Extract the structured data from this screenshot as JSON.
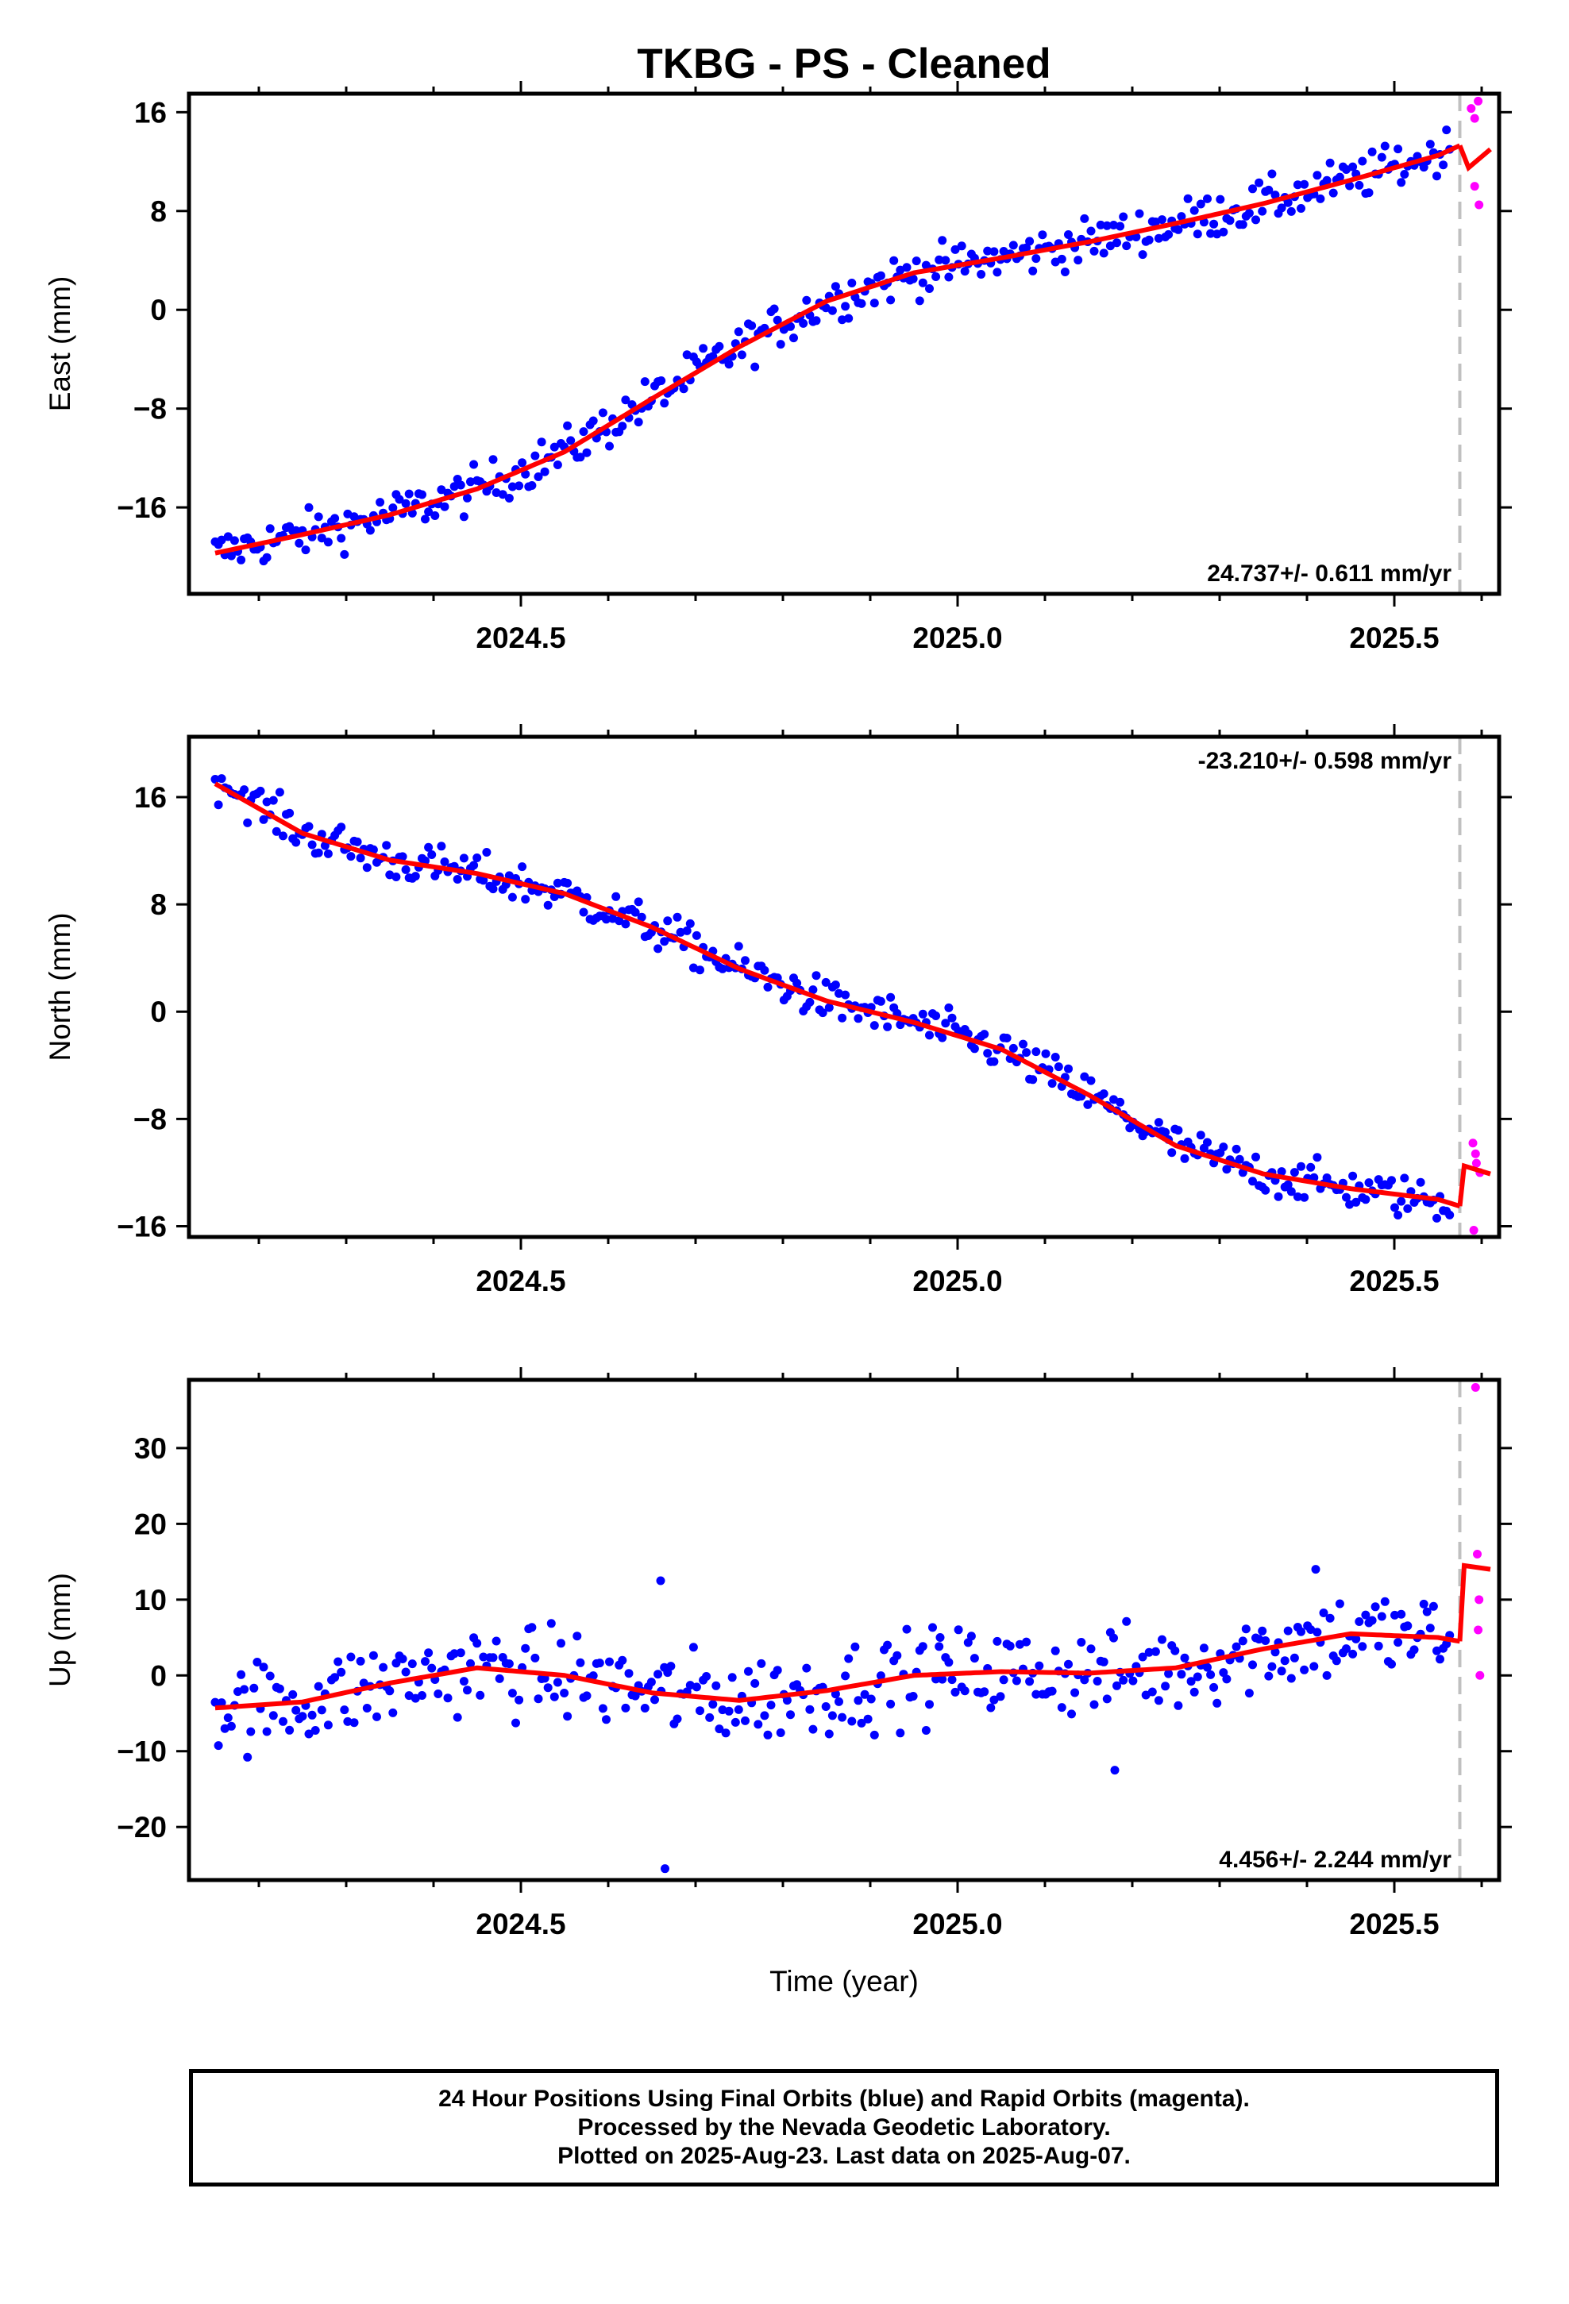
{
  "title": "TKBG  - PS - Cleaned",
  "footer": {
    "line1": "24 Hour Positions Using Final Orbits (blue) and Rapid Orbits (magenta).",
    "line2": "Processed by the Nevada Geodetic Laboratory.",
    "line3": "Plotted on 2025-Aug-23. Last data on 2025-Aug-07."
  },
  "chart_data": [
    {
      "type": "scatter",
      "panel": "east",
      "ylabel": "East (mm)",
      "xlabel": "",
      "xlim": [
        2024.12,
        2025.62
      ],
      "ylim": [
        -23,
        17.5
      ],
      "yticks": [
        16,
        8,
        0,
        -8,
        -16
      ],
      "xticks": [
        2024.5,
        2025.0,
        2025.5
      ],
      "xtick_labels": [
        "2024.5",
        "2025.0",
        "2025.5"
      ],
      "rate_label": "24.737+/- 0.611 mm/yr",
      "rate_position": "bottom-right",
      "break_epoch": 2025.575,
      "colors": {
        "final": "#0000ff",
        "rapid": "#ff00ff",
        "model": "#ff0000",
        "break_line": "#c0c0c0"
      },
      "model": {
        "x": [
          2024.15,
          2024.25,
          2024.35,
          2024.45,
          2024.55,
          2024.65,
          2024.75,
          2024.85,
          2024.95,
          2025.05,
          2025.15,
          2025.25,
          2025.35,
          2025.45,
          2025.55,
          2025.575
        ],
        "y": [
          -19.7,
          -18.2,
          -16.6,
          -14.5,
          -11.5,
          -7.2,
          -3.0,
          0.7,
          3.0,
          4.2,
          5.5,
          7.0,
          8.6,
          10.5,
          12.5,
          13.3
        ]
      },
      "model_after_break": {
        "x": [
          2025.575,
          2025.585,
          2025.61
        ],
        "y": [
          13.3,
          11.5,
          13.0
        ]
      },
      "final_anchors": {
        "x": [
          2024.15,
          2024.25,
          2024.35,
          2024.45,
          2024.55,
          2024.65,
          2024.75,
          2024.85,
          2024.95,
          2025.05,
          2025.15,
          2025.25,
          2025.35,
          2025.45,
          2025.565
        ],
        "y": [
          -19.7,
          -18.2,
          -16.6,
          -14.5,
          -11.5,
          -7.2,
          -3.0,
          0.7,
          3.0,
          4.2,
          5.5,
          7.0,
          8.6,
          10.5,
          13.0
        ]
      },
      "final_noise_mm": 1.3,
      "rapid_points": {
        "x": [
          2025.588,
          2025.592,
          2025.596,
          2025.592,
          2025.597
        ],
        "y": [
          16.3,
          15.5,
          16.9,
          10.0,
          8.5
        ]
      }
    },
    {
      "type": "scatter",
      "panel": "north",
      "ylabel": "North (mm)",
      "xlabel": "",
      "xlim": [
        2024.12,
        2025.62
      ],
      "ylim": [
        -16.8,
        20.5
      ],
      "yticks": [
        16,
        8,
        0,
        -8,
        -16
      ],
      "xticks": [
        2024.5,
        2025.0,
        2025.5
      ],
      "xtick_labels": [
        "2024.5",
        "2025.0",
        "2025.5"
      ],
      "rate_label": "-23.210+/- 0.598 mm/yr",
      "rate_position": "top-right",
      "break_epoch": 2025.575,
      "colors": {
        "final": "#0000ff",
        "rapid": "#ff00ff",
        "model": "#ff0000",
        "break_line": "#c0c0c0"
      },
      "model": {
        "x": [
          2024.15,
          2024.25,
          2024.35,
          2024.45,
          2024.55,
          2024.65,
          2024.75,
          2024.85,
          2024.95,
          2025.05,
          2025.15,
          2025.25,
          2025.35,
          2025.45,
          2025.55,
          2025.575
        ],
        "y": [
          17.0,
          13.3,
          11.3,
          10.3,
          8.8,
          6.3,
          3.2,
          0.8,
          -0.8,
          -2.8,
          -6.2,
          -10.0,
          -12.1,
          -13.2,
          -14.0,
          -14.5
        ]
      },
      "model_after_break": {
        "x": [
          2025.575,
          2025.58,
          2025.61
        ],
        "y": [
          -14.5,
          -11.5,
          -12.1
        ]
      },
      "final_anchors": {
        "x": [
          2024.15,
          2024.25,
          2024.35,
          2024.45,
          2024.55,
          2024.65,
          2024.75,
          2024.85,
          2024.95,
          2025.05,
          2025.15,
          2025.25,
          2025.35,
          2025.45,
          2025.565
        ],
        "y": [
          17.5,
          13.3,
          11.3,
          10.3,
          8.8,
          6.3,
          3.2,
          0.8,
          -0.8,
          -2.8,
          -6.2,
          -10.0,
          -12.1,
          -13.2,
          -14.3
        ]
      },
      "final_noise_mm": 1.1,
      "rapid_points": {
        "x": [
          2025.59,
          2025.594,
          2025.598,
          2025.593,
          2025.591
        ],
        "y": [
          -9.8,
          -11.3,
          -12.0,
          -10.6,
          -16.3
        ]
      }
    },
    {
      "type": "scatter",
      "panel": "up",
      "ylabel": "Up (mm)",
      "xlabel": "Time (year)",
      "xlim": [
        2024.12,
        2025.62
      ],
      "ylim": [
        -27,
        39
      ],
      "yticks": [
        30,
        20,
        10,
        0,
        -10,
        -20
      ],
      "xticks": [
        2024.5,
        2025.0,
        2025.5
      ],
      "xtick_labels": [
        "2024.5",
        "2025.0",
        "2025.5"
      ],
      "rate_label": "4.456+/- 2.244 mm/yr",
      "rate_position": "bottom-right",
      "break_epoch": 2025.575,
      "colors": {
        "final": "#0000ff",
        "rapid": "#ff00ff",
        "model": "#ff0000",
        "break_line": "#c0c0c0"
      },
      "model": {
        "x": [
          2024.15,
          2024.25,
          2024.35,
          2024.45,
          2024.55,
          2024.65,
          2024.75,
          2024.85,
          2024.95,
          2025.05,
          2025.15,
          2025.25,
          2025.35,
          2025.45,
          2025.55,
          2025.575
        ],
        "y": [
          -4.3,
          -3.5,
          -1.0,
          1.0,
          0.0,
          -2.3,
          -3.3,
          -2.0,
          0.0,
          0.5,
          0.3,
          1.0,
          3.5,
          5.5,
          5.0,
          4.5
        ]
      },
      "model_after_break": {
        "x": [
          2025.575,
          2025.58,
          2025.61
        ],
        "y": [
          4.5,
          14.5,
          14.0
        ]
      },
      "final_anchors": {
        "x": [
          2024.15,
          2024.25,
          2024.35,
          2024.45,
          2024.55,
          2024.65,
          2024.75,
          2024.85,
          2024.95,
          2025.05,
          2025.15,
          2025.25,
          2025.35,
          2025.45,
          2025.565
        ],
        "y": [
          -4.3,
          -3.5,
          -1.0,
          1.0,
          0.0,
          -2.3,
          -3.3,
          -2.0,
          0.0,
          0.5,
          0.3,
          1.0,
          3.5,
          5.5,
          5.0
        ]
      },
      "final_noise_mm": 4.2,
      "final_outliers": {
        "x": [
          2024.66,
          2024.665,
          2024.98,
          2025.18,
          2025.41
        ],
        "y": [
          12.5,
          -25.5,
          5.0,
          -12.5,
          14.0
        ]
      },
      "rapid_points": {
        "x": [
          2025.593,
          2025.595,
          2025.597,
          2025.596,
          2025.598
        ],
        "y": [
          38.0,
          16.0,
          10.0,
          6.0,
          0.0
        ]
      }
    }
  ]
}
